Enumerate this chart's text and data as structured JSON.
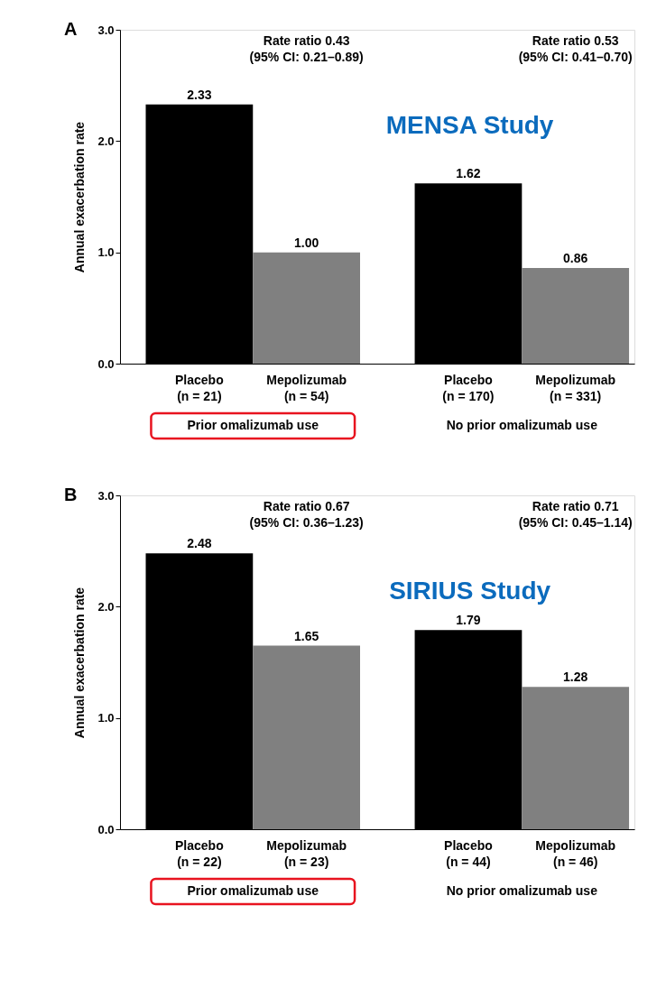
{
  "chart_data": [
    {
      "type": "bar",
      "title": "A",
      "subtitle": "MENSA Study",
      "ylabel": "Annual exacerbation rate",
      "categories": [
        "Placebo\n(n = 21)",
        "Mepolizumab\n(n = 54)",
        "Placebo\n(n = 170)",
        "Mepolizumab\n(n = 331)"
      ],
      "values": [
        2.33,
        1.0,
        1.62,
        0.86
      ],
      "value_labels": [
        "2.33",
        "1.00",
        "1.62",
        "0.86"
      ],
      "colors": [
        "#000000",
        "#808080",
        "#000000",
        "#808080"
      ],
      "ylim": [
        0,
        3
      ],
      "yticks": [
        {
          "value": 0,
          "label": "0.0"
        },
        {
          "value": 1,
          "label": "1.0"
        },
        {
          "value": 2,
          "label": "2.0"
        },
        {
          "value": 3,
          "label": "3.0"
        }
      ],
      "annotations": [
        "Rate ratio 0.43\n(95% CI: 0.21–0.89)",
        "Rate ratio 0.53\n(95% CI: 0.41–0.70)",
        "Prior omalizumab use",
        "No prior omalizumab use"
      ]
    },
    {
      "type": "bar",
      "title": "B",
      "subtitle": "SIRIUS Study",
      "ylabel": "Annual exacerbation rate",
      "categories": [
        "Placebo\n(n = 22)",
        "Mepolizumab\n(n = 23)",
        "Placebo\n(n = 44)",
        "Mepolizumab\n(n = 46)"
      ],
      "values": [
        2.48,
        1.65,
        1.79,
        1.28
      ],
      "value_labels": [
        "2.48",
        "1.65",
        "1.79",
        "1.28"
      ],
      "colors": [
        "#000000",
        "#808080",
        "#000000",
        "#808080"
      ],
      "ylim": [
        0,
        3
      ],
      "yticks": [
        {
          "value": 0,
          "label": "0.0"
        },
        {
          "value": 1,
          "label": "1.0"
        },
        {
          "value": 2,
          "label": "2.0"
        },
        {
          "value": 3,
          "label": "3.0"
        }
      ],
      "annotations": [
        "Rate ratio 0.67\n(95% CI: 0.36–1.23)",
        "Rate ratio 0.71\n(95% CI: 0.45–1.14)",
        "Prior omalizumab use",
        "No prior omalizumab use"
      ]
    }
  ]
}
